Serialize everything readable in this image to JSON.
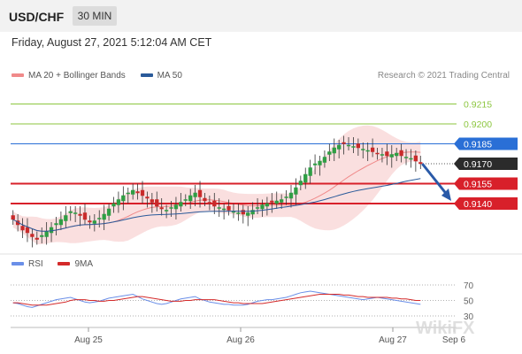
{
  "header": {
    "symbol": "USD/CHF",
    "timeframe": "30 MIN"
  },
  "timestamp": "Friday, August 27, 2021 5:12:04 AM CET",
  "legend": [
    {
      "label": "MA 20 + Bollinger Bands",
      "color": "#f08a8a"
    },
    {
      "label": "MA 50",
      "color": "#2a5a9a"
    }
  ],
  "credit": "Research © 2021 Trading Central",
  "rsi_legend": [
    {
      "label": "RSI",
      "color": "#6a8fe8"
    },
    {
      "label": "9MA",
      "color": "#d42a2a"
    }
  ],
  "watermark": "WikiFX",
  "colors": {
    "resistance_green": "#8cc63f",
    "pivot_blue": "#2a6fd6",
    "support_red": "#d8202a",
    "last_price_bg": "#2b2b2b",
    "arrow": "#2a5aa8"
  },
  "chart_data": {
    "type": "candlestick",
    "symbol": "USD/CHF",
    "interval": "30 MIN",
    "ylim": [
      0.91,
      0.923
    ],
    "x_tick_labels": [
      "Aug 25",
      "Aug 26",
      "Aug 27",
      "Sep 6"
    ],
    "price_levels": [
      {
        "value": 0.9215,
        "label": "0.9215",
        "kind": "resistance"
      },
      {
        "value": 0.92,
        "label": "0.9200",
        "kind": "resistance"
      },
      {
        "value": 0.9185,
        "label": "0.9185",
        "kind": "pivot"
      },
      {
        "value": 0.917,
        "label": "0.9170",
        "kind": "last"
      },
      {
        "value": 0.9155,
        "label": "0.9155",
        "kind": "support"
      },
      {
        "value": 0.914,
        "label": "0.9140",
        "kind": "support"
      }
    ],
    "ohlc_close": [
      0.9128,
      0.9124,
      0.912,
      0.9118,
      0.9115,
      0.9113,
      0.9116,
      0.9119,
      0.9122,
      0.9125,
      0.9128,
      0.9131,
      0.9134,
      0.9133,
      0.9131,
      0.9128,
      0.9126,
      0.9127,
      0.9129,
      0.9132,
      0.9136,
      0.914,
      0.9143,
      0.9146,
      0.9148,
      0.915,
      0.9148,
      0.9146,
      0.9144,
      0.9141,
      0.9138,
      0.9136,
      0.9135,
      0.9137,
      0.9139,
      0.9141,
      0.9143,
      0.9146,
      0.9148,
      0.9145,
      0.9142,
      0.914,
      0.9138,
      0.9137,
      0.9136,
      0.9135,
      0.9134,
      0.9133,
      0.9132,
      0.9133,
      0.9135,
      0.9137,
      0.9139,
      0.914,
      0.9141,
      0.9142,
      0.9143,
      0.9145,
      0.9148,
      0.9152,
      0.9157,
      0.9162,
      0.9167,
      0.917,
      0.9172,
      0.9175,
      0.9179,
      0.9182,
      0.9184,
      0.9185,
      0.9184,
      0.9183,
      0.9182,
      0.9181,
      0.918,
      0.9179,
      0.9178,
      0.9177,
      0.9176,
      0.9177,
      0.9178,
      0.9176,
      0.9175,
      0.9174,
      0.9172,
      0.917
    ],
    "rsi_levels": [
      70,
      50,
      30
    ],
    "rsi": [
      47,
      46,
      44,
      42,
      41,
      43,
      45,
      47,
      49,
      51,
      52,
      53,
      54,
      52,
      50,
      48,
      47,
      48,
      49,
      51,
      53,
      54,
      55,
      56,
      57,
      58,
      55,
      52,
      50,
      48,
      46,
      45,
      46,
      48,
      50,
      52,
      53,
      54,
      55,
      52,
      50,
      48,
      47,
      46,
      45,
      45,
      44,
      44,
      44,
      45,
      47,
      49,
      50,
      51,
      51,
      52,
      53,
      54,
      56,
      58,
      60,
      61,
      62,
      61,
      60,
      59,
      58,
      57,
      56,
      55,
      54,
      53,
      52,
      51,
      52,
      53,
      54,
      53,
      52,
      51,
      50,
      49,
      48,
      47,
      46,
      45
    ],
    "rsi_ma": [
      47,
      47,
      46,
      45,
      44,
      44,
      44,
      44,
      45,
      46,
      47,
      48,
      50,
      51,
      51,
      51,
      50,
      50,
      49,
      49,
      50,
      50,
      51,
      52,
      53,
      54,
      55,
      55,
      54,
      53,
      52,
      51,
      50,
      49,
      49,
      49,
      50,
      50,
      51,
      51,
      51,
      51,
      51,
      50,
      49,
      48,
      47,
      47,
      46,
      46,
      46,
      46,
      46,
      47,
      48,
      49,
      50,
      51,
      52,
      53,
      54,
      55,
      56,
      57,
      58,
      58,
      58,
      58,
      58,
      57,
      57,
      56,
      55,
      55,
      54,
      54,
      54,
      54,
      54,
      53,
      53,
      52,
      52,
      51,
      50,
      50
    ],
    "forecast_arrow": {
      "from": 0.917,
      "to": 0.9142
    }
  }
}
